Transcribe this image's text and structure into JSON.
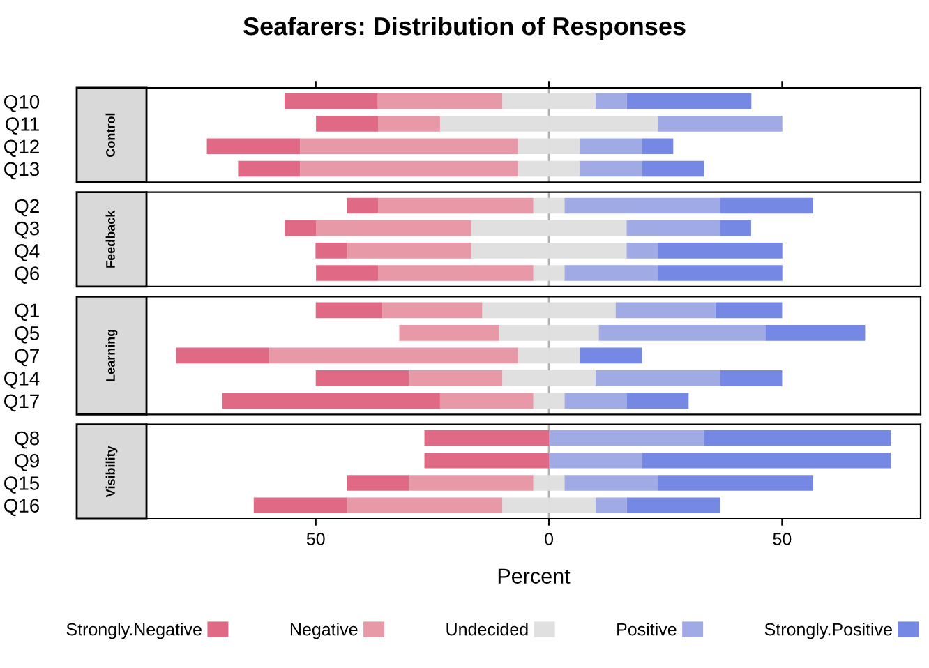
{
  "chart_data": [
    {
      "type": "bar",
      "title": "Seafarers: Distribution of Responses",
      "ylabel": "Control",
      "orientation": "horizontal",
      "stacked": true,
      "categories": [
        "Q10",
        "Q11",
        "Q12",
        "Q13"
      ],
      "xlim": [
        -86.3,
        79.7
      ],
      "xticks": [
        {
          "value": -50,
          "label": null
        },
        {
          "value": 0,
          "label": null
        },
        {
          "value": 50,
          "label": null
        }
      ],
      "tick_labels": "y",
      "ref_lines": [
        {
          "axis": "x",
          "value": 0,
          "label": null,
          "color": "#b0b0b0"
        }
      ],
      "series": [
        {
          "color": "#e0e0e0",
          "values": [
            -10,
            -23.35,
            -6.65,
            -6.65
          ]
        },
        {
          "color": "#e0e0e0",
          "values": [
            10,
            23.35,
            6.65,
            6.65
          ]
        },
        {
          "color": "#e899a8",
          "values": [
            -26.7,
            -13.3,
            -46.7,
            -46.7
          ]
        },
        {
          "color": "#a0aae4",
          "values": [
            6.7,
            26.7,
            13.3,
            13.3
          ]
        },
        {
          "color": "#e06a85",
          "values": [
            -20,
            -13.3,
            -20,
            -13.3
          ]
        },
        {
          "color": "#7589e4",
          "values": [
            26.7,
            0,
            6.7,
            13.3
          ]
        }
      ]
    },
    {
      "type": "bar",
      "ylabel": "Feedback",
      "orientation": "horizontal",
      "stacked": true,
      "categories": [
        "Q2",
        "Q3",
        "Q4",
        "Q6"
      ],
      "xlim": [
        -86.3,
        79.7
      ],
      "tick_labels": "y",
      "ref_lines": [
        {
          "axis": "x",
          "value": 0,
          "label": null,
          "color": "#b0b0b0"
        }
      ],
      "series": [
        {
          "color": "#e0e0e0",
          "values": [
            -3.35,
            -16.65,
            -16.65,
            -3.35
          ]
        },
        {
          "color": "#e0e0e0",
          "values": [
            3.35,
            16.65,
            16.65,
            3.35
          ]
        },
        {
          "color": "#e899a8",
          "values": [
            -33.3,
            -33.3,
            -26.7,
            -33.3
          ]
        },
        {
          "color": "#a0aae4",
          "values": [
            33.3,
            20,
            6.7,
            20
          ]
        },
        {
          "color": "#e06a85",
          "values": [
            -6.7,
            -6.7,
            -6.7,
            -13.3
          ]
        },
        {
          "color": "#7589e4",
          "values": [
            20,
            6.7,
            26.7,
            26.7
          ]
        }
      ]
    },
    {
      "type": "bar",
      "ylabel": "Learning",
      "orientation": "horizontal",
      "stacked": true,
      "categories": [
        "Q1",
        "Q5",
        "Q7",
        "Q14",
        "Q17"
      ],
      "xlim": [
        -86.3,
        79.7
      ],
      "tick_labels": "y",
      "ref_lines": [
        {
          "axis": "x",
          "value": 0,
          "label": null,
          "color": "#b0b0b0"
        }
      ],
      "series": [
        {
          "color": "#e0e0e0",
          "values": [
            -14.3,
            -10.7,
            -6.65,
            -10,
            -3.35
          ]
        },
        {
          "color": "#e0e0e0",
          "values": [
            14.3,
            10.7,
            6.65,
            10,
            3.35
          ]
        },
        {
          "color": "#e899a8",
          "values": [
            -21.4,
            -21.4,
            -53.3,
            -20,
            -20
          ]
        },
        {
          "color": "#a0aae4",
          "values": [
            21.4,
            35.7,
            0,
            26.7,
            13.3
          ]
        },
        {
          "color": "#e06a85",
          "values": [
            -14.3,
            0,
            -20,
            -20,
            -46.7
          ]
        },
        {
          "color": "#7589e4",
          "values": [
            14.3,
            21.4,
            13.3,
            13.3,
            13.3
          ]
        }
      ]
    },
    {
      "type": "bar",
      "ylabel": "Visibility",
      "xlabel": "Percent",
      "orientation": "horizontal",
      "stacked": true,
      "legend": "bottom",
      "categories": [
        "Q8",
        "Q9",
        "Q15",
        "Q16"
      ],
      "xlim": [
        -86.3,
        79.7
      ],
      "xticks": [
        {
          "value": -50,
          "label": "50"
        },
        0,
        50
      ],
      "ref_lines": [
        {
          "axis": "x",
          "value": 0,
          "label": null,
          "color": "#b0b0b0"
        }
      ],
      "series": [
        {
          "color": "#e0e0e0",
          "values": [
            0,
            0,
            -3.35,
            -10
          ]
        },
        {
          "name": "Undecided",
          "color": "#e0e0e0",
          "values": [
            0,
            0,
            3.35,
            10
          ]
        },
        {
          "name": "Negative",
          "color": "#e899a8",
          "values": [
            0,
            0,
            -26.7,
            -33.3
          ]
        },
        {
          "name": "Positive",
          "color": "#a0aae4",
          "values": [
            33.3,
            20,
            20,
            6.7
          ]
        },
        {
          "name": "Strongly.Negative",
          "color": "#e06a85",
          "values": [
            -26.7,
            -26.7,
            -13.3,
            -20
          ]
        },
        {
          "name": "Strongly.Positive",
          "color": "#7589e4",
          "values": [
            40,
            53.3,
            33.3,
            20
          ]
        }
      ]
    }
  ]
}
